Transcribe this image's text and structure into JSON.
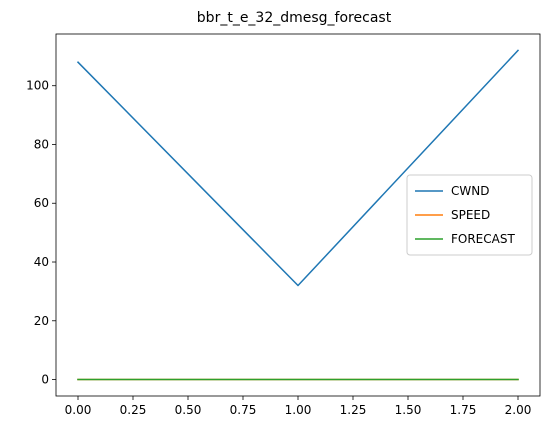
{
  "chart_data": {
    "type": "line",
    "title": "bbr_t_e_32_dmesg_forecast",
    "xlabel": "",
    "ylabel": "",
    "x": [
      0,
      1,
      2
    ],
    "series": [
      {
        "name": "CWND",
        "values": [
          108,
          32,
          112
        ],
        "color": "#1f77b4"
      },
      {
        "name": "SPEED",
        "values": [
          0,
          0,
          0
        ],
        "color": "#ff7f0e"
      },
      {
        "name": "FORECAST",
        "values": [
          0,
          0,
          0
        ],
        "color": "#2ca02c"
      }
    ],
    "xlim": [
      -0.1,
      2.1
    ],
    "ylim": [
      -5.6,
      117.6
    ],
    "xticks": [
      0.0,
      0.25,
      0.5,
      0.75,
      1.0,
      1.25,
      1.5,
      1.75,
      2.0
    ],
    "xtick_labels": [
      "0.00",
      "0.25",
      "0.50",
      "0.75",
      "1.00",
      "1.25",
      "1.50",
      "1.75",
      "2.00"
    ],
    "yticks": [
      0,
      20,
      40,
      60,
      80,
      100
    ],
    "ytick_labels": [
      "0",
      "20",
      "40",
      "60",
      "80",
      "100"
    ],
    "grid": false,
    "legend_position": "center-right"
  }
}
